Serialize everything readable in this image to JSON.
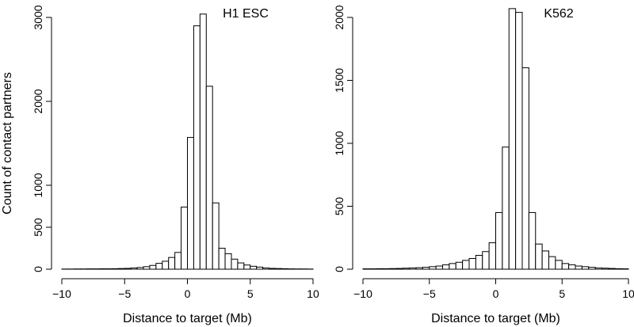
{
  "chart_data": [
    {
      "type": "bar",
      "title": "H1 ESC",
      "xlabel": "Distance to target (Mb)",
      "ylabel": "Count of contact partners",
      "xlim": [
        -10,
        10
      ],
      "ylim": [
        0,
        3000
      ],
      "xticks": [
        -10,
        -5,
        0,
        5,
        10
      ],
      "yticks": [
        0,
        500,
        1000,
        2000,
        3000
      ],
      "bin_width": 0.5,
      "bin_edges_start": -10,
      "values": [
        2,
        2,
        3,
        3,
        4,
        4,
        5,
        5,
        6,
        8,
        10,
        15,
        20,
        30,
        45,
        70,
        95,
        140,
        200,
        740,
        1570,
        2900,
        3040,
        2180,
        790,
        250,
        185,
        120,
        75,
        50,
        35,
        25,
        15,
        10,
        8,
        6,
        4,
        3,
        3,
        2
      ]
    },
    {
      "type": "bar",
      "title": "K562",
      "xlabel": "Distance to target (Mb)",
      "ylabel": "",
      "xlim": [
        -10,
        10
      ],
      "ylim": [
        0,
        2000
      ],
      "xticks": [
        -10,
        -5,
        0,
        5,
        10
      ],
      "yticks": [
        0,
        500,
        1000,
        1500,
        2000
      ],
      "bin_width": 0.5,
      "bin_edges_start": -10,
      "values": [
        3,
        3,
        4,
        4,
        5,
        6,
        8,
        10,
        12,
        15,
        20,
        25,
        35,
        45,
        55,
        70,
        85,
        110,
        140,
        210,
        450,
        970,
        2070,
        2040,
        1600,
        450,
        200,
        145,
        100,
        70,
        45,
        35,
        25,
        20,
        15,
        10,
        8,
        6,
        4,
        3
      ]
    }
  ]
}
